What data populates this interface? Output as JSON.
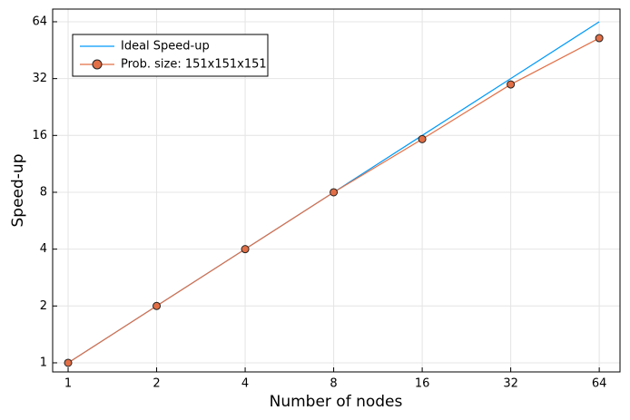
{
  "chart_data": {
    "type": "line",
    "x_label": "Number of nodes",
    "y_label": "Speed-up",
    "x": [
      1,
      2,
      4,
      8,
      16,
      32,
      64
    ],
    "series": [
      {
        "name": "Ideal Speed-up",
        "color": "#009af9",
        "values": [
          1,
          2,
          4,
          8,
          16,
          32,
          64
        ],
        "marker": false
      },
      {
        "name": "Prob. size: 151x151x151",
        "color": "#e26f46",
        "values": [
          1,
          2,
          4,
          8,
          15.3,
          29.8,
          52.4
        ],
        "marker": true
      }
    ],
    "xscale": "log2",
    "yscale": "log2",
    "xlim": [
      0.886,
      75.3
    ],
    "ylim": [
      0.895,
      74.7
    ],
    "xticks": [
      1,
      2,
      4,
      8,
      16,
      32,
      64
    ],
    "yticks": [
      1,
      2,
      4,
      8,
      16,
      32,
      64
    ],
    "grid": true,
    "legend_position": "top-left"
  }
}
